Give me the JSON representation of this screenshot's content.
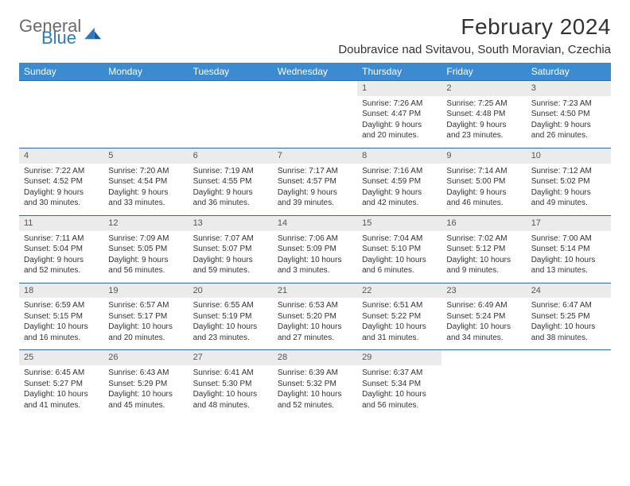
{
  "logo": {
    "textGeneral": "General",
    "textBlue": "Blue"
  },
  "header": {
    "monthTitle": "February 2024",
    "location": "Doubravice nad Svitavou, South Moravian, Czechia"
  },
  "colors": {
    "headerBar": "#3a8bd0",
    "weekDivider": "#2f6aa8",
    "dayNumBg": "#ebebeb",
    "logoBlue": "#2f79c2",
    "logoGray": "#6b6b6b"
  },
  "daysOfWeek": [
    "Sunday",
    "Monday",
    "Tuesday",
    "Wednesday",
    "Thursday",
    "Friday",
    "Saturday"
  ],
  "weeks": [
    [
      null,
      null,
      null,
      null,
      {
        "n": "1",
        "sr": "Sunrise: 7:26 AM",
        "ss": "Sunset: 4:47 PM",
        "dl1": "Daylight: 9 hours",
        "dl2": "and 20 minutes."
      },
      {
        "n": "2",
        "sr": "Sunrise: 7:25 AM",
        "ss": "Sunset: 4:48 PM",
        "dl1": "Daylight: 9 hours",
        "dl2": "and 23 minutes."
      },
      {
        "n": "3",
        "sr": "Sunrise: 7:23 AM",
        "ss": "Sunset: 4:50 PM",
        "dl1": "Daylight: 9 hours",
        "dl2": "and 26 minutes."
      }
    ],
    [
      {
        "n": "4",
        "sr": "Sunrise: 7:22 AM",
        "ss": "Sunset: 4:52 PM",
        "dl1": "Daylight: 9 hours",
        "dl2": "and 30 minutes."
      },
      {
        "n": "5",
        "sr": "Sunrise: 7:20 AM",
        "ss": "Sunset: 4:54 PM",
        "dl1": "Daylight: 9 hours",
        "dl2": "and 33 minutes."
      },
      {
        "n": "6",
        "sr": "Sunrise: 7:19 AM",
        "ss": "Sunset: 4:55 PM",
        "dl1": "Daylight: 9 hours",
        "dl2": "and 36 minutes."
      },
      {
        "n": "7",
        "sr": "Sunrise: 7:17 AM",
        "ss": "Sunset: 4:57 PM",
        "dl1": "Daylight: 9 hours",
        "dl2": "and 39 minutes."
      },
      {
        "n": "8",
        "sr": "Sunrise: 7:16 AM",
        "ss": "Sunset: 4:59 PM",
        "dl1": "Daylight: 9 hours",
        "dl2": "and 42 minutes."
      },
      {
        "n": "9",
        "sr": "Sunrise: 7:14 AM",
        "ss": "Sunset: 5:00 PM",
        "dl1": "Daylight: 9 hours",
        "dl2": "and 46 minutes."
      },
      {
        "n": "10",
        "sr": "Sunrise: 7:12 AM",
        "ss": "Sunset: 5:02 PM",
        "dl1": "Daylight: 9 hours",
        "dl2": "and 49 minutes."
      }
    ],
    [
      {
        "n": "11",
        "sr": "Sunrise: 7:11 AM",
        "ss": "Sunset: 5:04 PM",
        "dl1": "Daylight: 9 hours",
        "dl2": "and 52 minutes."
      },
      {
        "n": "12",
        "sr": "Sunrise: 7:09 AM",
        "ss": "Sunset: 5:05 PM",
        "dl1": "Daylight: 9 hours",
        "dl2": "and 56 minutes."
      },
      {
        "n": "13",
        "sr": "Sunrise: 7:07 AM",
        "ss": "Sunset: 5:07 PM",
        "dl1": "Daylight: 9 hours",
        "dl2": "and 59 minutes."
      },
      {
        "n": "14",
        "sr": "Sunrise: 7:06 AM",
        "ss": "Sunset: 5:09 PM",
        "dl1": "Daylight: 10 hours",
        "dl2": "and 3 minutes."
      },
      {
        "n": "15",
        "sr": "Sunrise: 7:04 AM",
        "ss": "Sunset: 5:10 PM",
        "dl1": "Daylight: 10 hours",
        "dl2": "and 6 minutes."
      },
      {
        "n": "16",
        "sr": "Sunrise: 7:02 AM",
        "ss": "Sunset: 5:12 PM",
        "dl1": "Daylight: 10 hours",
        "dl2": "and 9 minutes."
      },
      {
        "n": "17",
        "sr": "Sunrise: 7:00 AM",
        "ss": "Sunset: 5:14 PM",
        "dl1": "Daylight: 10 hours",
        "dl2": "and 13 minutes."
      }
    ],
    [
      {
        "n": "18",
        "sr": "Sunrise: 6:59 AM",
        "ss": "Sunset: 5:15 PM",
        "dl1": "Daylight: 10 hours",
        "dl2": "and 16 minutes."
      },
      {
        "n": "19",
        "sr": "Sunrise: 6:57 AM",
        "ss": "Sunset: 5:17 PM",
        "dl1": "Daylight: 10 hours",
        "dl2": "and 20 minutes."
      },
      {
        "n": "20",
        "sr": "Sunrise: 6:55 AM",
        "ss": "Sunset: 5:19 PM",
        "dl1": "Daylight: 10 hours",
        "dl2": "and 23 minutes."
      },
      {
        "n": "21",
        "sr": "Sunrise: 6:53 AM",
        "ss": "Sunset: 5:20 PM",
        "dl1": "Daylight: 10 hours",
        "dl2": "and 27 minutes."
      },
      {
        "n": "22",
        "sr": "Sunrise: 6:51 AM",
        "ss": "Sunset: 5:22 PM",
        "dl1": "Daylight: 10 hours",
        "dl2": "and 31 minutes."
      },
      {
        "n": "23",
        "sr": "Sunrise: 6:49 AM",
        "ss": "Sunset: 5:24 PM",
        "dl1": "Daylight: 10 hours",
        "dl2": "and 34 minutes."
      },
      {
        "n": "24",
        "sr": "Sunrise: 6:47 AM",
        "ss": "Sunset: 5:25 PM",
        "dl1": "Daylight: 10 hours",
        "dl2": "and 38 minutes."
      }
    ],
    [
      {
        "n": "25",
        "sr": "Sunrise: 6:45 AM",
        "ss": "Sunset: 5:27 PM",
        "dl1": "Daylight: 10 hours",
        "dl2": "and 41 minutes."
      },
      {
        "n": "26",
        "sr": "Sunrise: 6:43 AM",
        "ss": "Sunset: 5:29 PM",
        "dl1": "Daylight: 10 hours",
        "dl2": "and 45 minutes."
      },
      {
        "n": "27",
        "sr": "Sunrise: 6:41 AM",
        "ss": "Sunset: 5:30 PM",
        "dl1": "Daylight: 10 hours",
        "dl2": "and 48 minutes."
      },
      {
        "n": "28",
        "sr": "Sunrise: 6:39 AM",
        "ss": "Sunset: 5:32 PM",
        "dl1": "Daylight: 10 hours",
        "dl2": "and 52 minutes."
      },
      {
        "n": "29",
        "sr": "Sunrise: 6:37 AM",
        "ss": "Sunset: 5:34 PM",
        "dl1": "Daylight: 10 hours",
        "dl2": "and 56 minutes."
      },
      null,
      null
    ]
  ]
}
